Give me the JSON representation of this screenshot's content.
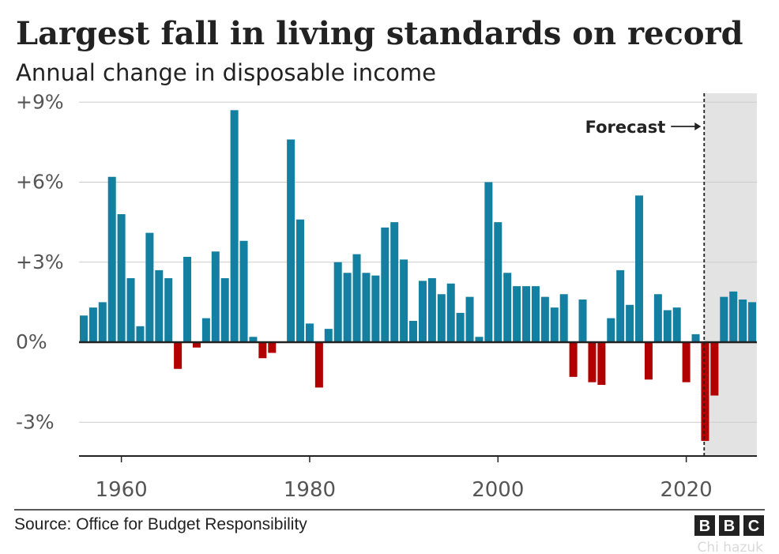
{
  "chart_data": {
    "type": "bar",
    "title": "Largest fall in living standards on record",
    "subtitle": "Annual change in disposable income",
    "x": [
      1956,
      1957,
      1958,
      1959,
      1960,
      1961,
      1962,
      1963,
      1964,
      1965,
      1966,
      1967,
      1968,
      1969,
      1970,
      1971,
      1972,
      1973,
      1974,
      1975,
      1976,
      1977,
      1978,
      1979,
      1980,
      1981,
      1982,
      1983,
      1984,
      1985,
      1986,
      1987,
      1988,
      1989,
      1990,
      1991,
      1992,
      1993,
      1994,
      1995,
      1996,
      1997,
      1998,
      1999,
      2000,
      2001,
      2002,
      2003,
      2004,
      2005,
      2006,
      2007,
      2008,
      2009,
      2010,
      2011,
      2012,
      2013,
      2014,
      2015,
      2016,
      2017,
      2018,
      2019,
      2020,
      2021,
      2022,
      2023,
      2024,
      2025,
      2026,
      2027
    ],
    "values": [
      1.0,
      1.3,
      1.5,
      6.2,
      4.8,
      2.4,
      0.6,
      4.1,
      2.7,
      2.4,
      -1.0,
      3.2,
      -0.2,
      0.9,
      3.4,
      2.4,
      8.7,
      3.8,
      0.2,
      -0.6,
      -0.4,
      0,
      7.6,
      4.6,
      0.7,
      -1.7,
      0.5,
      3.0,
      2.6,
      3.3,
      2.6,
      2.5,
      4.3,
      4.5,
      3.1,
      0.8,
      2.3,
      2.4,
      1.8,
      2.2,
      1.1,
      1.7,
      0.2,
      6.0,
      4.5,
      2.6,
      2.1,
      2.1,
      2.1,
      1.7,
      1.3,
      1.8,
      -1.3,
      1.6,
      -1.5,
      -1.6,
      0.9,
      2.7,
      1.4,
      5.5,
      -1.4,
      1.8,
      1.2,
      1.3,
      -1.5,
      0.3,
      -3.7,
      -2.0,
      1.7,
      1.9,
      1.6,
      1.5
    ],
    "y_ticks": [
      {
        "value": 9,
        "label": "+9%"
      },
      {
        "value": 6,
        "label": "+6%"
      },
      {
        "value": 3,
        "label": "+3%"
      },
      {
        "value": 0,
        "label": "0%"
      },
      {
        "value": -3,
        "label": "-3%"
      }
    ],
    "x_ticks": [
      {
        "value": 1960,
        "label": "1960"
      },
      {
        "value": 1980,
        "label": "1980"
      },
      {
        "value": 2000,
        "label": "2000"
      },
      {
        "value": 2020,
        "label": "2020"
      }
    ],
    "ylim": [
      -4.3,
      9.2
    ],
    "xlim": [
      1955.5,
      2027.5
    ],
    "forecast_from": 2021.9,
    "annotation": "Forecast",
    "source": "Source: Office for Budget Responsibility",
    "logo_letters": [
      "B",
      "B",
      "C"
    ],
    "watermark": "Chi hazuk",
    "grid": true,
    "colors": {
      "positive": "#1380a1",
      "negative": "#b00000",
      "forecast_shade": "#e3e3e3",
      "gridline": "#cccccc",
      "axis": "#222222"
    }
  }
}
